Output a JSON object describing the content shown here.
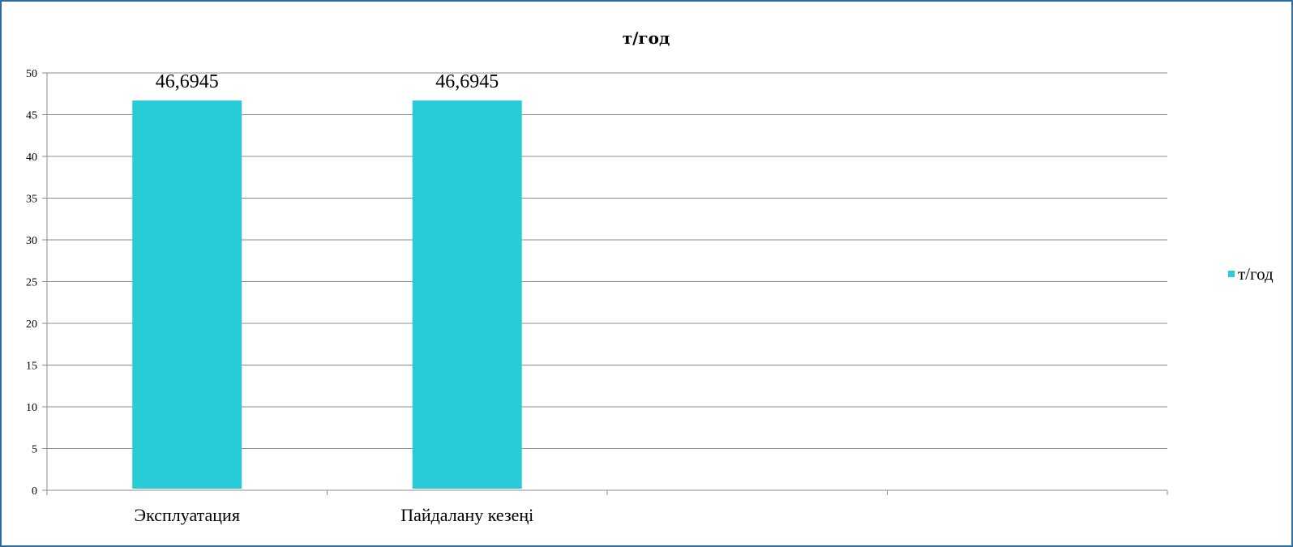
{
  "chart_data": {
    "type": "bar",
    "title": "т/год",
    "xlabel": "",
    "ylabel": "",
    "categories": [
      "Эксплуатация",
      "Пайдалану кезеңі",
      "",
      ""
    ],
    "series": [
      {
        "name": "т/год",
        "values": [
          46.6945,
          46.6945,
          null,
          null
        ],
        "color": "#29ccd6"
      }
    ],
    "data_labels": [
      "46,6945",
      "46,6945"
    ],
    "ylim": [
      0,
      50
    ],
    "y_ticks": [
      0,
      5,
      10,
      15,
      20,
      25,
      30,
      35,
      40,
      45,
      50
    ],
    "grid": true,
    "legend_position": "right"
  }
}
